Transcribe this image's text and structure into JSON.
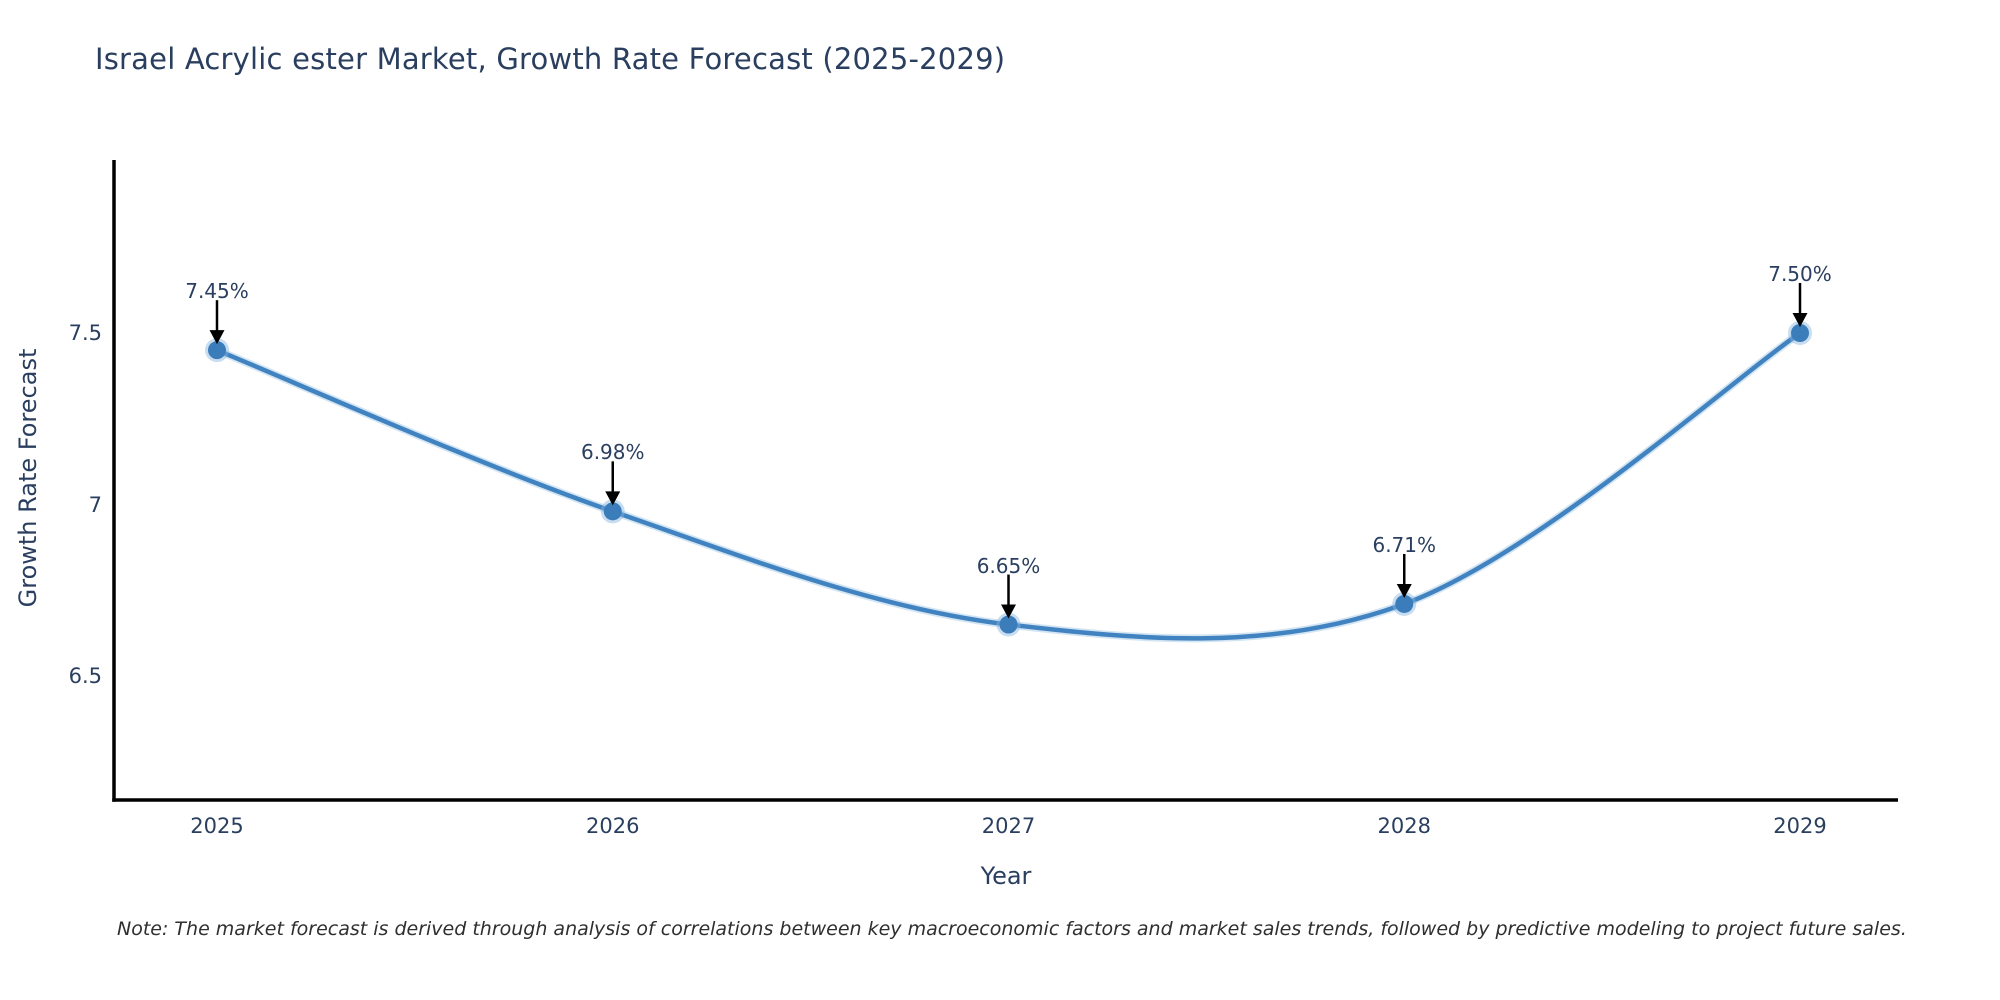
{
  "title": "Israel Acrylic ester Market, Growth Rate Forecast (2025-2029)",
  "note": "Note: The market forecast is derived through analysis of correlations between key macroeconomic factors and market sales trends, followed by predictive modeling to project future sales.",
  "colors": {
    "line": "#4183c0",
    "line_glow": "#9ec6e4",
    "marker": "#3b7cba",
    "marker_halo": "#86b4dd",
    "axis": "#000000",
    "text": "#2a3f5f",
    "arrow": "#000000",
    "background": "#ffffff"
  },
  "chart_data": {
    "type": "line",
    "line_shape": "spline",
    "title": "Israel Acrylic ester Market, Growth Rate Forecast (2025-2029)",
    "xlabel": "Year",
    "ylabel": "Growth Rate Forecast",
    "x": [
      2025,
      2026,
      2027,
      2028,
      2029
    ],
    "y": [
      7.45,
      6.98,
      6.65,
      6.71,
      7.5
    ],
    "point_labels": [
      "7.45%",
      "6.98%",
      "6.65%",
      "6.71%",
      "7.50%"
    ],
    "xticks": [
      "2025",
      "2026",
      "2027",
      "2028",
      "2029"
    ],
    "yticks": [
      6.5,
      7,
      7.5
    ],
    "ytick_labels": [
      "6.5",
      "7",
      "7.5"
    ],
    "ylim": [
      6.14,
      8.0
    ],
    "grid": false,
    "legend": "none"
  }
}
